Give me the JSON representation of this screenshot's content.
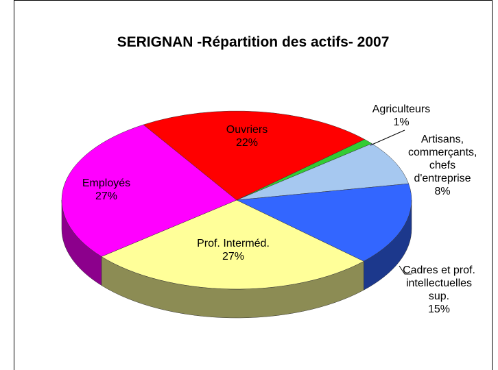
{
  "chart_data": {
    "type": "pie3d",
    "title": "SERIGNAN -Répartition des actifs- 2007",
    "categories": [
      "Agriculteurs",
      "Artisans, commerçants, chefs d'entreprise",
      "Cadres et prof. intellectuelles sup.",
      "Prof. Interméd.",
      "Employés",
      "Ouvriers"
    ],
    "values": [
      1,
      8,
      15,
      27,
      27,
      22
    ],
    "value_labels": [
      "1%",
      "8%",
      "15%",
      "27%",
      "27%",
      "22%"
    ],
    "colors": [
      "#33cc33",
      "#a6c8f0",
      "#3366ff",
      "#ffff99",
      "#ff00ff",
      "#ff0000"
    ]
  }
}
